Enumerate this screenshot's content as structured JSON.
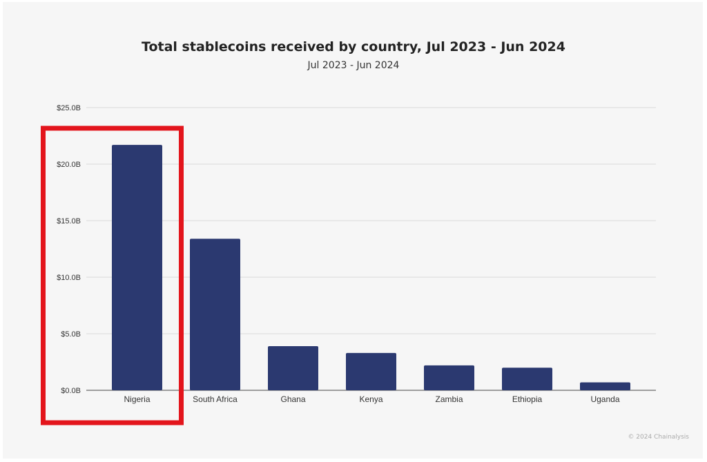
{
  "chart_data": {
    "type": "bar",
    "title": "Total stablecoins received by country, Jul 2023 - Jun 2024",
    "subtitle": "Jul 2023 - Jun 2024",
    "categories": [
      "Nigeria",
      "South Africa",
      "Ghana",
      "Kenya",
      "Zambia",
      "Ethiopia",
      "Uganda"
    ],
    "values": [
      21.7,
      13.4,
      3.9,
      3.3,
      2.2,
      2.0,
      0.7
    ],
    "unit": "USD billions",
    "ylim": [
      0,
      25
    ],
    "yticks": [
      0,
      5,
      10,
      15,
      20,
      25
    ],
    "ytick_labels": [
      "$0.0B",
      "$5.0B",
      "$10.0B",
      "$15.0B",
      "$20.0B",
      "$25.0B"
    ],
    "xlabel": "",
    "ylabel": "",
    "grid": true,
    "bar_color": "#2b3970",
    "highlight": {
      "category": "Nigeria",
      "color": "#e3151c"
    }
  },
  "footer": "© 2024 Chainalysis",
  "colors": {
    "background": "#f6f6f6",
    "grid": "#d9d9d9",
    "axis": "#444444"
  }
}
